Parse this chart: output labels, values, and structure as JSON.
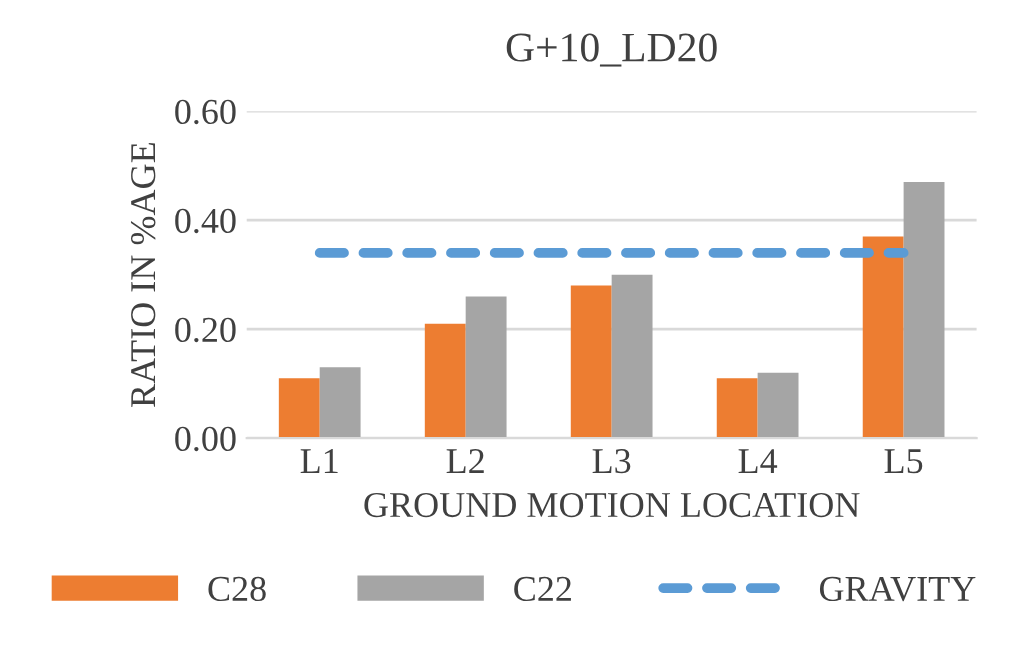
{
  "chart_data": {
    "type": "bar",
    "title": "G+10_LD20",
    "xlabel": "GROUND MOTION LOCATION",
    "ylabel": "RATIO IN %AGE",
    "categories": [
      "L1",
      "L2",
      "L3",
      "L4",
      "L5"
    ],
    "series": [
      {
        "name": "C28",
        "color": "#ed7d31",
        "values": [
          0.11,
          0.21,
          0.28,
          0.11,
          0.37
        ]
      },
      {
        "name": "C22",
        "color": "#a5a5a5",
        "values": [
          0.13,
          0.26,
          0.3,
          0.12,
          0.47
        ]
      },
      {
        "name": "GRAVITY",
        "type": "line",
        "color": "#5b9bd5",
        "line_style": "dashed",
        "values": [
          0.34,
          0.34,
          0.34,
          0.34,
          0.34
        ]
      }
    ],
    "ylim": [
      0,
      0.6
    ],
    "yticks": [
      {
        "value": 0,
        "label": "0.00"
      },
      {
        "value": 0.2,
        "label": "0.20"
      },
      {
        "value": 0.4,
        "label": "0.40"
      },
      {
        "value": 0.6,
        "label": "0.60"
      }
    ],
    "grid": "y",
    "legend": "bottom"
  }
}
